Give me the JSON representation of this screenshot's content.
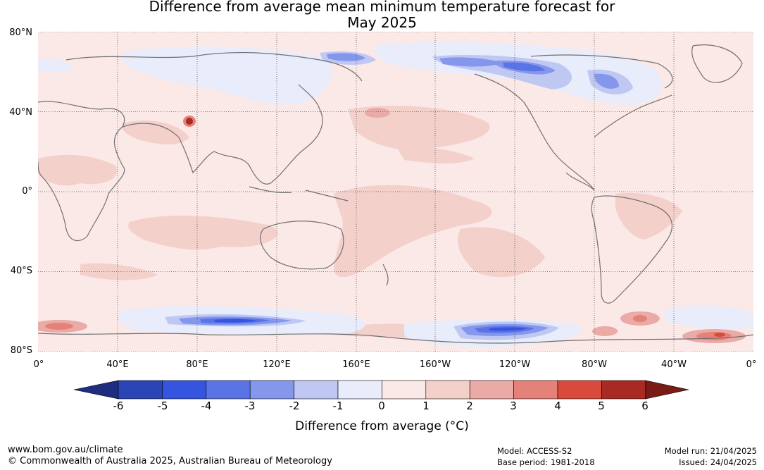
{
  "title": {
    "line1": "Difference from average mean minimum temperature forecast for",
    "line2": "May 2025"
  },
  "map": {
    "lat_labels": [
      "80°N",
      "40°N",
      "0°",
      "40°S",
      "80°S"
    ],
    "lon_labels": [
      "0°",
      "40°E",
      "80°E",
      "120°E",
      "160°E",
      "160°W",
      "120°W",
      "80°W",
      "40°W",
      "0°"
    ],
    "ocean_color": "#fbe9e7",
    "coast_color": "#707070"
  },
  "colorbar": {
    "ticks": [
      "-6",
      "-5",
      "-4",
      "-3",
      "-2",
      "-1",
      "0",
      "1",
      "2",
      "3",
      "4",
      "5",
      "6"
    ],
    "colors": [
      "#1f2d80",
      "#2b44b6",
      "#3555e0",
      "#5a74e5",
      "#8497ec",
      "#bfc8f3",
      "#e8ecfb",
      "#fbe9e7",
      "#f4d0cb",
      "#eaaaa5",
      "#e4827a",
      "#d94a3d",
      "#a92a22",
      "#7a1c16"
    ],
    "label": "Difference from average (°C)"
  },
  "footer": {
    "website": "www.bom.gov.au/climate",
    "copyright": "© Commonwealth of Australia 2025, Australian Bureau of Meteorology",
    "model": "Model: ACCESS-S2",
    "base_period": "Base period: 1981-2018",
    "model_run": "Model run: 21/04/2025",
    "issued": "Issued: 24/04/2025"
  }
}
